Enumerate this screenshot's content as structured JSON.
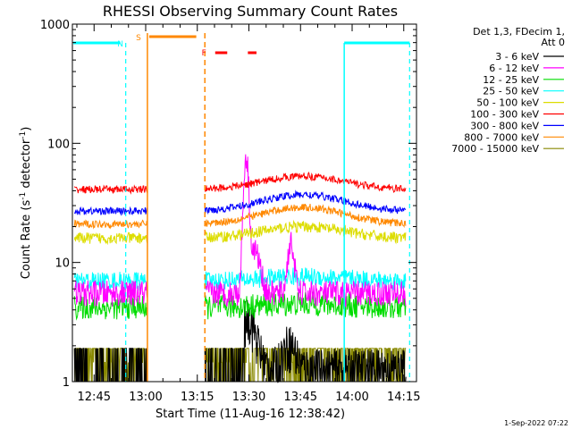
{
  "chart_data": {
    "type": "line",
    "title": "RHESSI Observing Summary Count Rates",
    "xlabel": "Start Time (11-Aug-16 12:38:42)",
    "ylabel_main": "Count Rate (s",
    "ylabel_sup1": "-1",
    "ylabel_mid": " detector",
    "ylabel_sup2": "-1",
    "ylabel_end": ")",
    "yscale": "log",
    "ylim": [
      1,
      1000
    ],
    "xlim_minutes": [
      0,
      100
    ],
    "x_ticks": [
      {
        "label": "12:45",
        "minutes": 6.3
      },
      {
        "label": "13:00",
        "minutes": 21.3
      },
      {
        "label": "13:15",
        "minutes": 36.3
      },
      {
        "label": "13:30",
        "minutes": 51.3
      },
      {
        "label": "13:45",
        "minutes": 66.3
      },
      {
        "label": "14:00",
        "minutes": 81.3
      },
      {
        "label": "14:15",
        "minutes": 96.3
      }
    ],
    "y_ticks": [
      {
        "label": "1",
        "value": 1
      },
      {
        "label": "10",
        "value": 10
      },
      {
        "label": "100",
        "value": 100
      },
      {
        "label": "1000",
        "value": 1000
      }
    ],
    "legend_title_1": "Det 1,3, FDecim 1,",
    "legend_title_2": "Att 0",
    "series": [
      {
        "name": "3 - 6 keV",
        "color": "#000000"
      },
      {
        "name": "6 - 12 keV",
        "color": "#ff00ff"
      },
      {
        "name": "12 - 25 keV",
        "color": "#00dd00"
      },
      {
        "name": "25 - 50 keV",
        "color": "#00ffff"
      },
      {
        "name": "50 - 100 keV",
        "color": "#dddd00"
      },
      {
        "name": "100 - 300 keV",
        "color": "#ff0000"
      },
      {
        "name": "300 - 800 keV",
        "color": "#0000ff"
      },
      {
        "name": "800 - 7000 keV",
        "color": "#ff8800"
      },
      {
        "name": "7000 - 15000 keV",
        "color": "#888800"
      }
    ],
    "gaps_minutes": [
      [
        21.8,
        38.5
      ]
    ],
    "annotations": [
      {
        "label": "N",
        "color": "#00ffff",
        "minutes": 15.5
      },
      {
        "label": "S",
        "color": "#ff8800",
        "minutes": 21.8
      },
      {
        "label": "F",
        "color": "#ff0000",
        "minutes": 39.8
      }
    ],
    "footer_date": "1-Sep-2022 07:22"
  }
}
